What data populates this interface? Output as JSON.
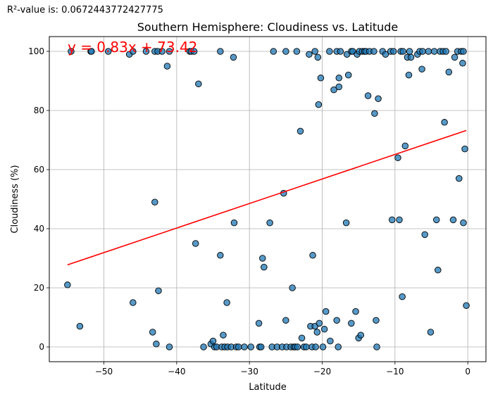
{
  "stat_text": "R²-value is: 0.0672443772427775",
  "chart_data": {
    "type": "scatter",
    "title": "Southern Hemisphere: Cloudiness vs. Latitude",
    "xlabel": "Latitude",
    "ylabel": "Cloudiness (%)",
    "xlim": [
      -57.5,
      2.5
    ],
    "ylim": [
      -5,
      105
    ],
    "xticks": [
      -50,
      -40,
      -30,
      -20,
      -10,
      0
    ],
    "yticks": [
      0,
      20,
      40,
      60,
      80,
      100
    ],
    "grid": true,
    "point_color": "#1f77b4",
    "line_color": "#ff0000",
    "regression": {
      "equation": "y = 0.83x + 73.42",
      "slope": 0.83,
      "intercept": 73.42,
      "x_range": [
        -55,
        -0.2
      ]
    },
    "points": [
      [
        -55.0,
        21
      ],
      [
        -54.5,
        100
      ],
      [
        -53.3,
        7
      ],
      [
        -51.8,
        100
      ],
      [
        -51.7,
        100
      ],
      [
        -49.4,
        100
      ],
      [
        -46.5,
        99
      ],
      [
        -46.0,
        100
      ],
      [
        -46.0,
        15
      ],
      [
        -44.2,
        100
      ],
      [
        -43.3,
        5
      ],
      [
        -43.0,
        100
      ],
      [
        -43.0,
        49
      ],
      [
        -42.8,
        1
      ],
      [
        -42.6,
        100
      ],
      [
        -42.5,
        19
      ],
      [
        -42.0,
        100
      ],
      [
        -41.3,
        95
      ],
      [
        -41.0,
        100
      ],
      [
        -41.0,
        0
      ],
      [
        -38.2,
        100
      ],
      [
        -38.0,
        100
      ],
      [
        -37.6,
        100
      ],
      [
        -37.4,
        35
      ],
      [
        -37.0,
        89
      ],
      [
        -36.3,
        0
      ],
      [
        -35.3,
        1
      ],
      [
        -35.0,
        2
      ],
      [
        -34.8,
        0
      ],
      [
        -34.5,
        0
      ],
      [
        -34.0,
        100
      ],
      [
        -34.0,
        31
      ],
      [
        -33.8,
        0
      ],
      [
        -33.6,
        4
      ],
      [
        -33.4,
        0
      ],
      [
        -33.1,
        15
      ],
      [
        -33.0,
        0
      ],
      [
        -32.5,
        0
      ],
      [
        -32.2,
        98
      ],
      [
        -32.1,
        42
      ],
      [
        -31.8,
        0
      ],
      [
        -31.5,
        0
      ],
      [
        -30.7,
        0
      ],
      [
        -29.8,
        0
      ],
      [
        -28.7,
        8
      ],
      [
        -28.6,
        0
      ],
      [
        -28.4,
        0
      ],
      [
        -28.2,
        30
      ],
      [
        -28.0,
        27
      ],
      [
        -27.2,
        42
      ],
      [
        -26.9,
        0
      ],
      [
        -26.7,
        100
      ],
      [
        -26.2,
        0
      ],
      [
        -25.5,
        0
      ],
      [
        -25.3,
        52
      ],
      [
        -25.0,
        100
      ],
      [
        -25.0,
        9
      ],
      [
        -24.9,
        0
      ],
      [
        -24.3,
        0
      ],
      [
        -24.1,
        20
      ],
      [
        -23.9,
        0
      ],
      [
        -23.7,
        0
      ],
      [
        -23.5,
        100
      ],
      [
        -23.4,
        0
      ],
      [
        -23.0,
        73
      ],
      [
        -22.8,
        3
      ],
      [
        -22.5,
        0
      ],
      [
        -22.2,
        0
      ],
      [
        -21.8,
        99
      ],
      [
        -21.6,
        7
      ],
      [
        -21.4,
        0
      ],
      [
        -21.3,
        31
      ],
      [
        -21.0,
        100
      ],
      [
        -21.0,
        7
      ],
      [
        -20.9,
        0
      ],
      [
        -20.7,
        5
      ],
      [
        -20.6,
        98
      ],
      [
        -20.5,
        82
      ],
      [
        -20.4,
        8
      ],
      [
        -20.2,
        91
      ],
      [
        -19.9,
        0
      ],
      [
        -19.7,
        6
      ],
      [
        -19.5,
        12
      ],
      [
        -19.0,
        100
      ],
      [
        -18.9,
        2
      ],
      [
        -18.4,
        87
      ],
      [
        -18.0,
        100
      ],
      [
        -18.0,
        9
      ],
      [
        -17.8,
        0
      ],
      [
        -17.7,
        88
      ],
      [
        -17.7,
        91
      ],
      [
        -17.5,
        100
      ],
      [
        -16.7,
        42
      ],
      [
        -16.6,
        99
      ],
      [
        -16.4,
        92
      ],
      [
        -16.0,
        100
      ],
      [
        -16.0,
        8
      ],
      [
        -15.8,
        100
      ],
      [
        -15.4,
        12
      ],
      [
        -15.2,
        99
      ],
      [
        -15.0,
        3
      ],
      [
        -14.9,
        100
      ],
      [
        -14.7,
        4
      ],
      [
        -14.5,
        100
      ],
      [
        -14.2,
        100
      ],
      [
        -14.0,
        100
      ],
      [
        -13.7,
        85
      ],
      [
        -13.5,
        100
      ],
      [
        -12.9,
        100
      ],
      [
        -12.8,
        79
      ],
      [
        -12.6,
        9
      ],
      [
        -12.5,
        0
      ],
      [
        -12.3,
        84
      ],
      [
        -11.7,
        100
      ],
      [
        -11.3,
        99
      ],
      [
        -10.6,
        100
      ],
      [
        -10.4,
        43
      ],
      [
        -10.2,
        100
      ],
      [
        -9.6,
        64
      ],
      [
        -9.4,
        43
      ],
      [
        -9.2,
        100
      ],
      [
        -9.0,
        17
      ],
      [
        -8.9,
        100
      ],
      [
        -8.6,
        68
      ],
      [
        -8.3,
        98
      ],
      [
        -8.1,
        92
      ],
      [
        -8.0,
        100
      ],
      [
        -7.8,
        98
      ],
      [
        -6.9,
        99
      ],
      [
        -6.6,
        100
      ],
      [
        -6.3,
        94
      ],
      [
        -6.2,
        100
      ],
      [
        -5.9,
        38
      ],
      [
        -5.4,
        100
      ],
      [
        -5.1,
        5
      ],
      [
        -4.6,
        100
      ],
      [
        -4.3,
        43
      ],
      [
        -4.1,
        26
      ],
      [
        -3.8,
        100
      ],
      [
        -3.4,
        100
      ],
      [
        -3.2,
        76
      ],
      [
        -3.0,
        100
      ],
      [
        -2.6,
        93
      ],
      [
        -2.0,
        43
      ],
      [
        -1.8,
        98
      ],
      [
        -1.4,
        100
      ],
      [
        -1.2,
        57
      ],
      [
        -0.9,
        100
      ],
      [
        -0.7,
        96
      ],
      [
        -0.6,
        100
      ],
      [
        -0.6,
        42
      ],
      [
        -0.4,
        67
      ],
      [
        -0.2,
        14
      ]
    ]
  }
}
